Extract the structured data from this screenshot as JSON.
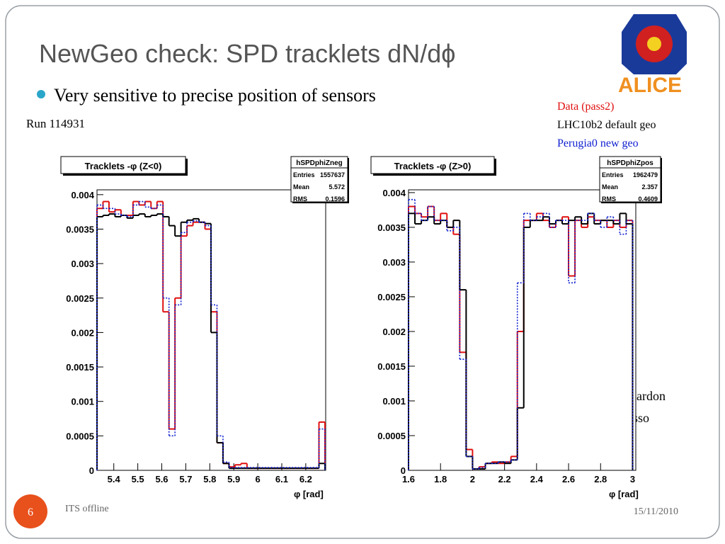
{
  "title": "NewGeo check: SPD tracklets dN/dϕ",
  "bullet": "Very sensitive to precise position of sensors",
  "run": "Run 114931",
  "logo_text": "ALICE",
  "authors": [
    "M. Lunardon",
    "R. Grosso"
  ],
  "footer": {
    "page": "6",
    "left": "ITS offline",
    "date": "15/11/2010"
  },
  "chart_data": [
    {
      "type": "histogram",
      "title": "Tracklets -φ (Z<0)",
      "x_label": "φ [rad]",
      "stats": {
        "name": "hSPDphiZneg",
        "rows": [
          [
            "Entries",
            "1557637"
          ],
          [
            "Mean",
            "5.572"
          ],
          [
            "RMS",
            "0.1596"
          ]
        ]
      },
      "bins": [
        5.33,
        5.355,
        5.38,
        5.405,
        5.43,
        5.455,
        5.48,
        5.505,
        5.53,
        5.555,
        5.58,
        5.605,
        5.63,
        5.655,
        5.68,
        5.705,
        5.73,
        5.755,
        5.78,
        5.805,
        5.83,
        5.855,
        5.88,
        5.905,
        5.93,
        5.955,
        5.98,
        6.005,
        6.03,
        6.055,
        6.08,
        6.105,
        6.13,
        6.155,
        6.18,
        6.205,
        6.23,
        6.255,
        6.28
      ],
      "xlim": [
        5.33,
        6.283
      ],
      "ylim": [
        0,
        0.00407
      ],
      "xticks": [
        5.4,
        5.5,
        5.6,
        5.7,
        5.8,
        5.9,
        6,
        6.1,
        6.2
      ],
      "yticks": [
        0,
        0.0005,
        0.001,
        0.0015,
        0.002,
        0.0025,
        0.003,
        0.0035,
        0.004
      ],
      "series": [
        {
          "name": "Data (pass2)",
          "color": "#e01010",
          "values": [
            0.0038,
            0.0039,
            0.00375,
            0.00378,
            0.0037,
            0.0037,
            0.0039,
            0.00385,
            0.0039,
            0.0038,
            0.0039,
            0.0023,
            0.0006,
            0.0025,
            0.0034,
            0.00355,
            0.0036,
            0.0036,
            0.0035,
            0.0023,
            0.0004,
            0.0001,
            5e-05,
            8e-05,
            0.0001,
            3e-05,
            3e-05,
            3e-05,
            3e-05,
            3e-05,
            3e-05,
            3e-05,
            3e-05,
            3e-05,
            3e-05,
            3e-05,
            3e-05,
            0.0007
          ]
        },
        {
          "name": "LHC10b2 default geo",
          "color": "#000000",
          "values": [
            0.00368,
            0.0037,
            0.00372,
            0.00368,
            0.0037,
            0.00366,
            0.0037,
            0.00372,
            0.00368,
            0.0037,
            0.00372,
            0.00368,
            0.00355,
            0.0034,
            0.0036,
            0.00363,
            0.00365,
            0.0036,
            0.00358,
            0.002,
            0.0004,
            0.0001,
            3e-05,
            3e-05,
            3e-05,
            3e-05,
            3e-05,
            3e-05,
            3e-05,
            3e-05,
            3e-05,
            3e-05,
            3e-05,
            3e-05,
            3e-05,
            3e-05,
            3e-05,
            0.0001
          ]
        },
        {
          "name": "Perugia0 new geo",
          "color": "#1020d0",
          "values": [
            0.00385,
            0.0038,
            0.0038,
            0.00372,
            0.0037,
            0.00368,
            0.00385,
            0.0039,
            0.00382,
            0.0038,
            0.00385,
            0.0025,
            0.0005,
            0.0024,
            0.00345,
            0.0036,
            0.00362,
            0.0036,
            0.00355,
            0.0024,
            0.0005,
            0.00012,
            4e-05,
            4e-05,
            4e-05,
            4e-05,
            4e-05,
            4e-05,
            4e-05,
            4e-05,
            4e-05,
            4e-05,
            4e-05,
            4e-05,
            4e-05,
            4e-05,
            4e-05,
            0.0006
          ]
        }
      ]
    },
    {
      "type": "histogram",
      "title": "Tracklets -φ (Z>0)",
      "x_label": "φ [rad]",
      "stats": {
        "name": "hSPDphiZpos",
        "rows": [
          [
            "Entries",
            "1962479"
          ],
          [
            "Mean",
            "2.357"
          ],
          [
            "RMS",
            "0.4609"
          ]
        ]
      },
      "bins": [
        1.6,
        1.64,
        1.68,
        1.72,
        1.76,
        1.8,
        1.84,
        1.88,
        1.92,
        1.96,
        2.0,
        2.04,
        2.08,
        2.12,
        2.16,
        2.2,
        2.24,
        2.28,
        2.32,
        2.36,
        2.4,
        2.44,
        2.48,
        2.52,
        2.56,
        2.6,
        2.64,
        2.68,
        2.72,
        2.76,
        2.8,
        2.84,
        2.88,
        2.92,
        2.96,
        3.0
      ],
      "xlim": [
        1.6,
        3.02
      ],
      "ylim": [
        0,
        0.00404
      ],
      "xticks": [
        1.6,
        1.8,
        2,
        2.2,
        2.4,
        2.6,
        2.8,
        3
      ],
      "yticks": [
        0,
        0.0005,
        0.001,
        0.0015,
        0.002,
        0.0025,
        0.003,
        0.0035,
        0.004
      ],
      "series": [
        {
          "color": "#e01010",
          "values": [
            0.0038,
            0.0037,
            0.00365,
            0.0038,
            0.0036,
            0.0037,
            0.0035,
            0.0034,
            0.0017,
            0.0003,
            2e-05,
            5e-05,
            0.0001,
            0.00012,
            0.0001,
            0.00012,
            0.0002,
            0.002,
            0.0036,
            0.0036,
            0.0037,
            0.0036,
            0.0035,
            0.0036,
            0.00365,
            0.0028,
            0.0036,
            0.0035,
            0.00365,
            0.0036,
            0.0036,
            0.0035,
            0.0036,
            0.0035,
            0.0036
          ]
        },
        {
          "color": "#000000",
          "values": [
            0.0037,
            0.00355,
            0.0036,
            0.00365,
            0.00355,
            0.0036,
            0.0035,
            0.0036,
            0.0026,
            0.0002,
            2e-05,
            2e-05,
            0.0001,
            0.0001,
            0.00012,
            0.0001,
            0.00015,
            0.0009,
            0.0035,
            0.0036,
            0.0036,
            0.00365,
            0.00355,
            0.0036,
            0.00355,
            0.0036,
            0.00365,
            0.00355,
            0.0037,
            0.00355,
            0.0036,
            0.0036,
            0.00355,
            0.0037,
            0.00355
          ]
        },
        {
          "color": "#1020d0",
          "values": [
            0.0039,
            0.0037,
            0.0036,
            0.0038,
            0.0036,
            0.0036,
            0.00345,
            0.0035,
            0.0016,
            0.0002,
            2e-05,
            4e-05,
            0.0001,
            0.0001,
            0.00012,
            0.00012,
            0.00015,
            0.0027,
            0.0037,
            0.0036,
            0.00365,
            0.0037,
            0.0035,
            0.0036,
            0.0036,
            0.0027,
            0.0036,
            0.0036,
            0.0037,
            0.0036,
            0.0035,
            0.00365,
            0.0036,
            0.0034,
            0.0036
          ]
        }
      ]
    }
  ]
}
